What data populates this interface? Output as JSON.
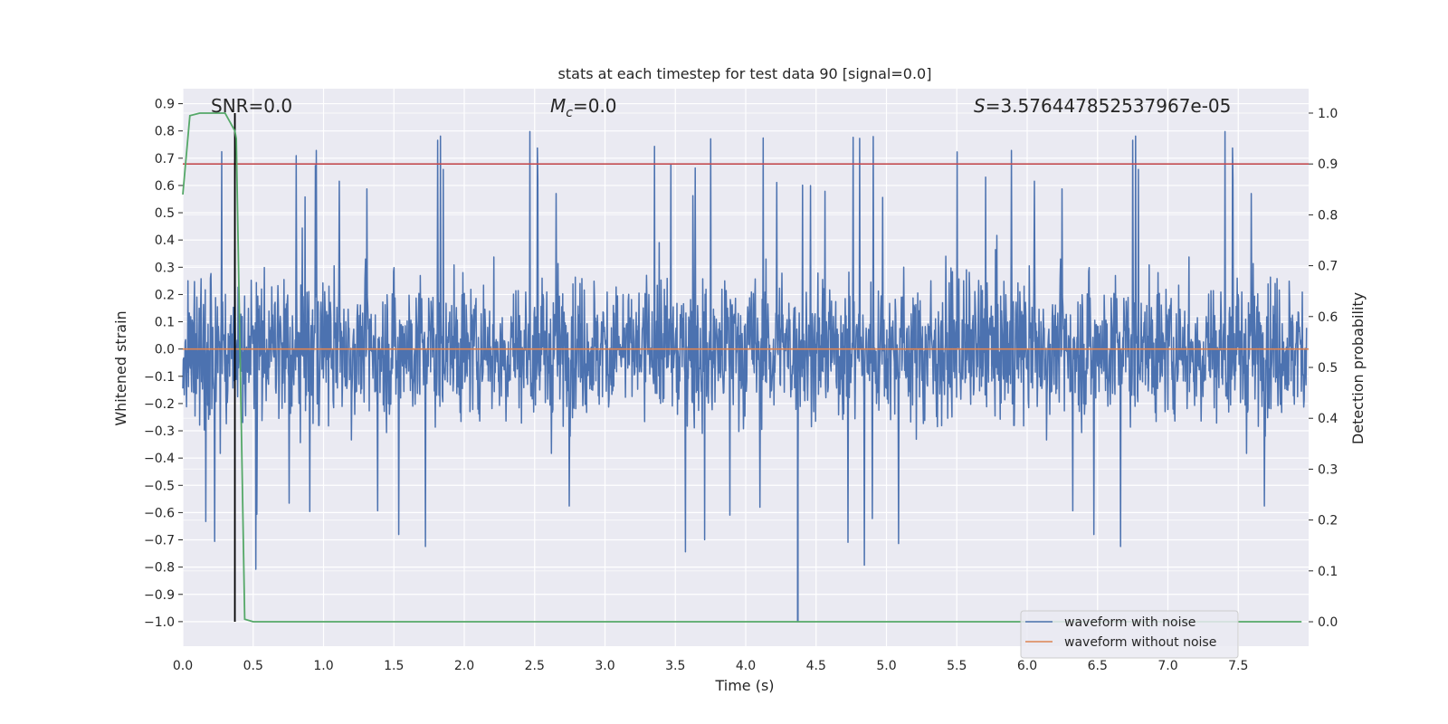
{
  "chart_data": {
    "type": "line",
    "title": "stats at each timestep for test data 90 [signal=0.0]",
    "xlabel": "Time (s)",
    "ylabel": "Whitened strain",
    "y2label": "Detection probability",
    "xlim": [
      0.0,
      8.0
    ],
    "ylim": [
      -1.09,
      0.955
    ],
    "y2lim": [
      -0.048,
      1.048
    ],
    "xticks": [
      "0.0",
      "0.5",
      "1.0",
      "1.5",
      "2.0",
      "2.5",
      "3.0",
      "3.5",
      "4.0",
      "4.5",
      "5.0",
      "5.5",
      "6.0",
      "6.5",
      "7.0",
      "7.5"
    ],
    "yticks": [
      "0.9",
      "0.8",
      "0.7",
      "0.6",
      "0.5",
      "0.4",
      "0.3",
      "0.2",
      "0.1",
      "0.0",
      "−0.1",
      "−0.2",
      "−0.3",
      "−0.4",
      "−0.5",
      "−0.6",
      "−0.7",
      "−0.8",
      "−0.9",
      "−1.0"
    ],
    "y2ticks": [
      "1.0",
      "0.9",
      "0.8",
      "0.7",
      "0.6",
      "0.5",
      "0.4",
      "0.3",
      "0.2",
      "0.1",
      "0.0"
    ],
    "annotations": {
      "snr": "SNR=0.0",
      "mc_symbol": "M",
      "mc_sub": "c",
      "mc_value": "=0.0",
      "s_symbol": "S",
      "s_value": "=3.576447852537967e-05"
    },
    "threshold": {
      "value": 0.9,
      "axis": "right",
      "color": "#c44e52"
    },
    "marker_time": 0.37,
    "series": [
      {
        "name": "waveform with noise",
        "color": "#4c72b0",
        "description": "whitened noise strain, ~8 s, range about -1.0 to 0.85"
      },
      {
        "name": "waveform without noise",
        "color": "#dd8452",
        "values_constant": 0.0
      },
      {
        "name": "detection probability",
        "color": "#55a868",
        "axis": "right",
        "x": [
          0.0,
          0.05,
          0.12,
          0.2,
          0.3,
          0.37,
          0.38,
          0.44,
          0.5,
          7.95
        ],
        "y": [
          0.84,
          0.995,
          1.0,
          1.0,
          1.0,
          0.965,
          0.95,
          0.005,
          0.0,
          0.0
        ]
      }
    ],
    "legend": [
      "waveform with noise",
      "waveform without noise"
    ],
    "legend_position": "lower-right"
  }
}
